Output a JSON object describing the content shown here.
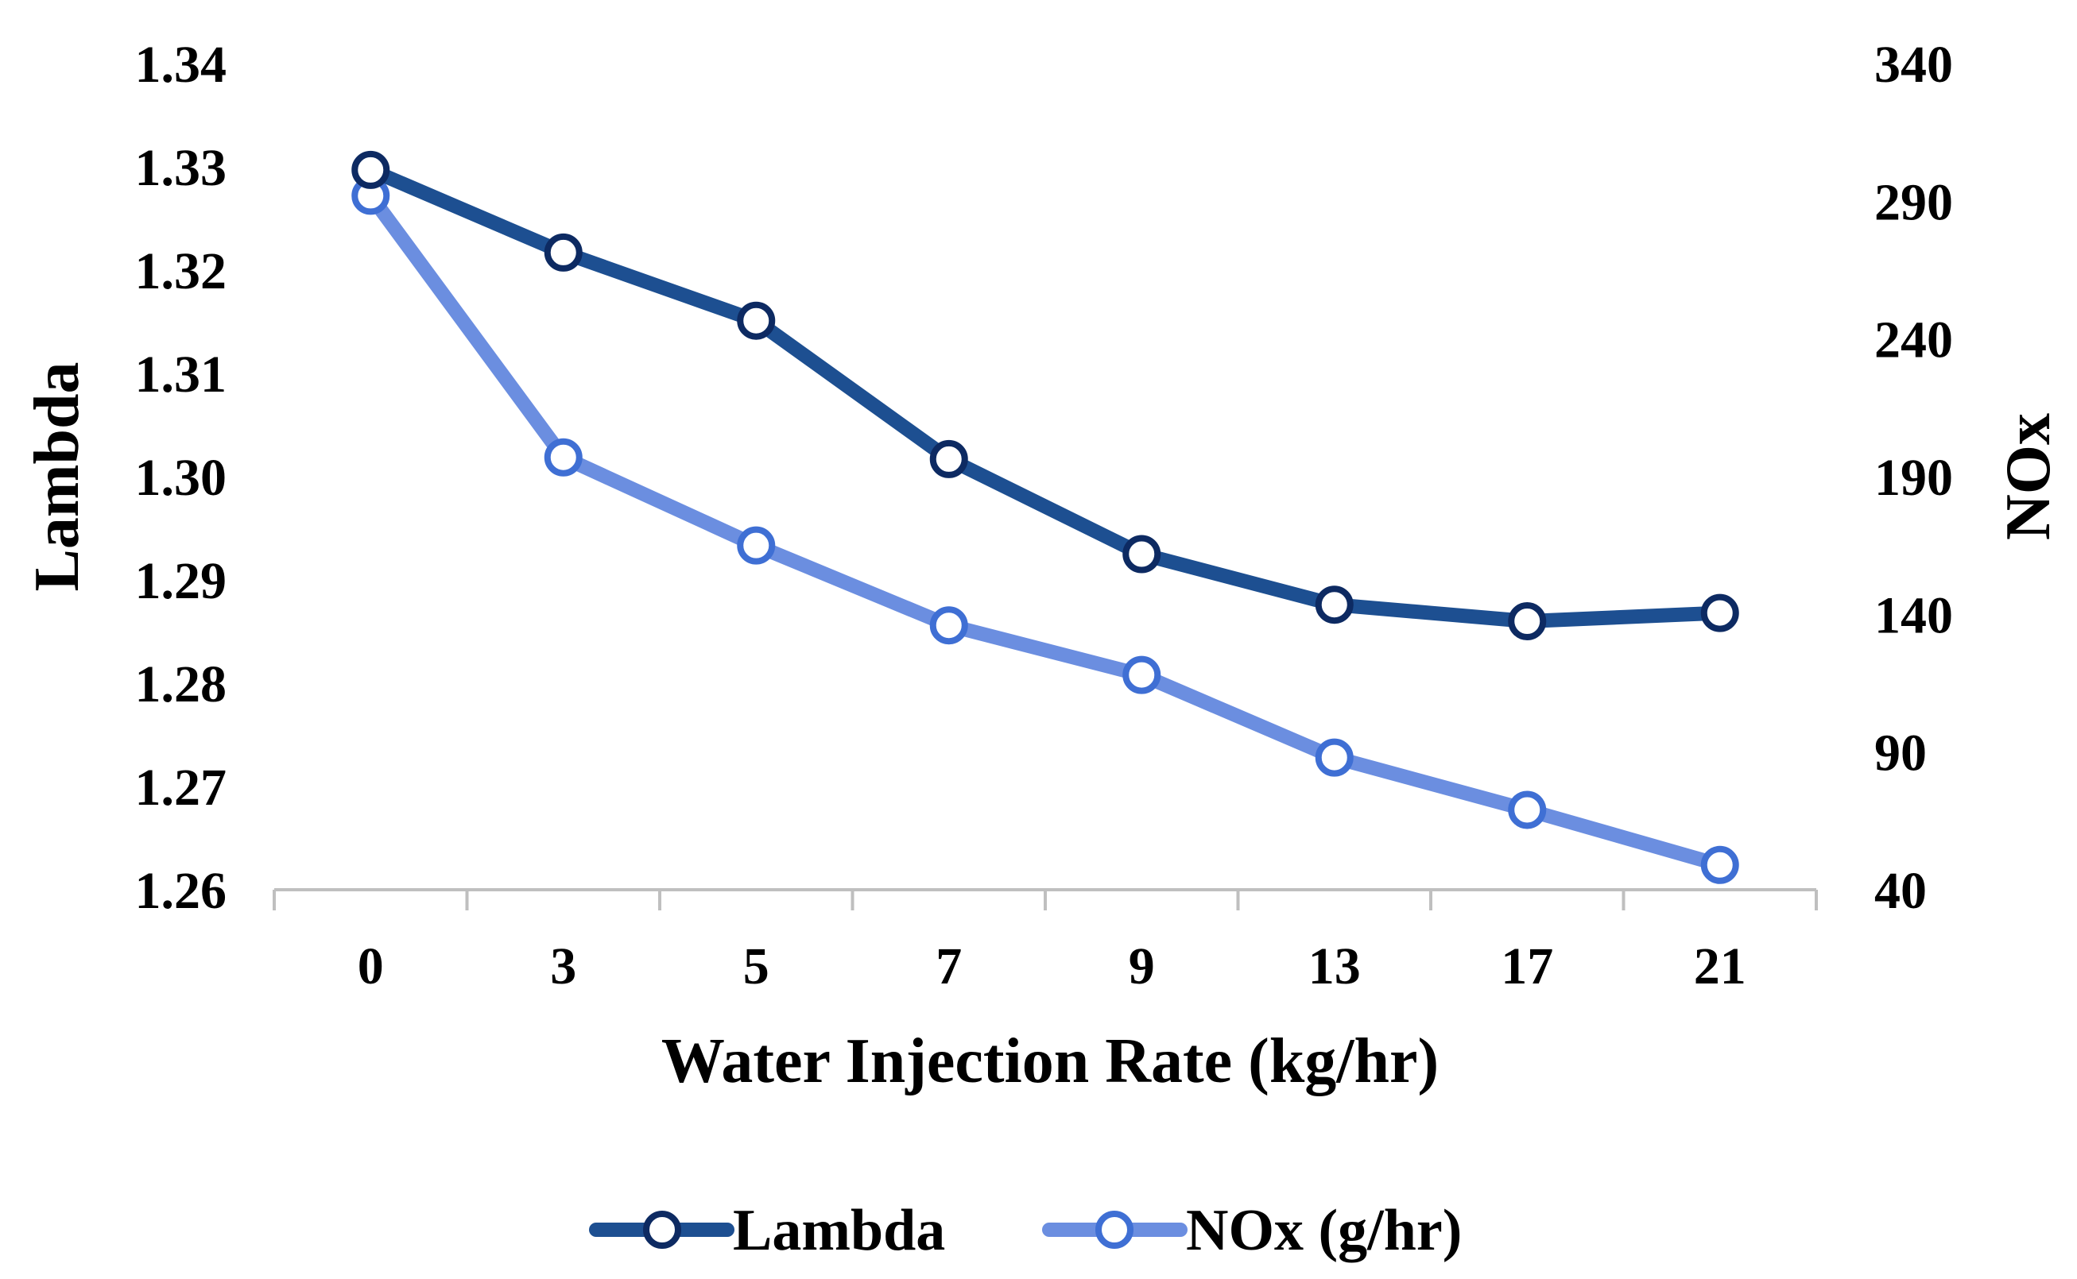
{
  "chart_data": {
    "type": "line",
    "title": "",
    "xlabel": "Water Injection Rate (kg/hr)",
    "ylabel_left": "Lambda",
    "ylabel_right": "NOx",
    "categories": [
      "0",
      "3",
      "5",
      "7",
      "9",
      "13",
      "17",
      "21"
    ],
    "y_left": {
      "min": 1.26,
      "max": 1.34,
      "ticks": [
        "1.34",
        "1.33",
        "1.32",
        "1.31",
        "1.30",
        "1.29",
        "1.28",
        "1.27",
        "1.26"
      ]
    },
    "y_right": {
      "min": 40,
      "max": 340,
      "ticks": [
        "340",
        "290",
        "240",
        "190",
        "140",
        "90",
        "40"
      ]
    },
    "series": [
      {
        "name": "Lambda",
        "axis": "left",
        "color": "#1d4f91",
        "outline": "#0d2a62",
        "values": [
          1.3297,
          1.3217,
          1.3151,
          1.3017,
          1.2925,
          1.2876,
          1.286,
          1.2868
        ]
      },
      {
        "name": "NOx (g/hr)",
        "axis": "right",
        "color": "#6b8ee0",
        "outline": "#3f6fd4",
        "values": [
          292,
          197,
          165,
          136,
          118,
          88,
          69,
          49
        ]
      }
    ],
    "legend": [
      "Lambda",
      "NOx (g/hr)"
    ],
    "legend_position": "bottom",
    "grid": false
  }
}
